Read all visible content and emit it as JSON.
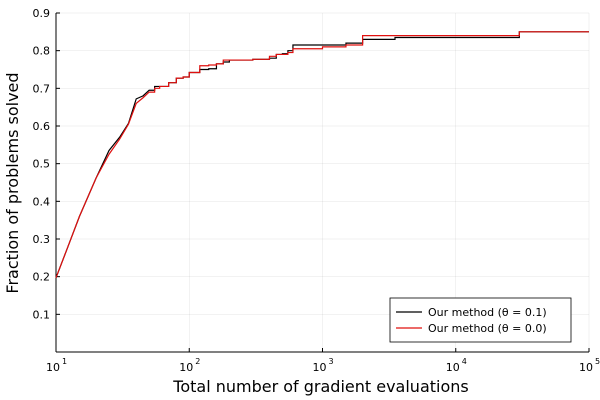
{
  "chart_data": {
    "type": "line",
    "step": true,
    "title": "",
    "xlabel": "Total number of gradient evaluations",
    "ylabel": "Fraction of problems solved",
    "xscale": "log",
    "xlim": [
      10,
      100000
    ],
    "ylim": [
      0,
      0.9
    ],
    "grid": true,
    "legend_position": "bottom-right",
    "x_ticks": [
      {
        "value": 10,
        "base": "10",
        "exp": "1"
      },
      {
        "value": 100,
        "base": "10",
        "exp": "2"
      },
      {
        "value": 1000,
        "base": "10",
        "exp": "3"
      },
      {
        "value": 10000,
        "base": "10",
        "exp": "4"
      },
      {
        "value": 100000,
        "base": "10",
        "exp": "5"
      }
    ],
    "y_ticks": [
      {
        "value": 0.1,
        "label": "0.1"
      },
      {
        "value": 0.2,
        "label": "0.2"
      },
      {
        "value": 0.3,
        "label": "0.3"
      },
      {
        "value": 0.4,
        "label": "0.4"
      },
      {
        "value": 0.5,
        "label": "0.5"
      },
      {
        "value": 0.6,
        "label": "0.6"
      },
      {
        "value": 0.7,
        "label": "0.7"
      },
      {
        "value": 0.8,
        "label": "0.8"
      },
      {
        "value": 0.9,
        "label": "0.9"
      }
    ],
    "series": [
      {
        "name": "Our method (θ = 0.1)",
        "color": "#000000",
        "points": [
          [
            10,
            0.197
          ],
          [
            12,
            0.27
          ],
          [
            15,
            0.36
          ],
          [
            20,
            0.462
          ],
          [
            25,
            0.535
          ],
          [
            30,
            0.57
          ],
          [
            35,
            0.607
          ],
          [
            40,
            0.672
          ],
          [
            45,
            0.68
          ],
          [
            50,
            0.695
          ],
          [
            55,
            0.705
          ],
          [
            60,
            0.705
          ],
          [
            70,
            0.715
          ],
          [
            80,
            0.727
          ],
          [
            90,
            0.73
          ],
          [
            100,
            0.742
          ],
          [
            120,
            0.75
          ],
          [
            140,
            0.752
          ],
          [
            160,
            0.765
          ],
          [
            180,
            0.77
          ],
          [
            200,
            0.775
          ],
          [
            300,
            0.777
          ],
          [
            400,
            0.78
          ],
          [
            450,
            0.79
          ],
          [
            500,
            0.792
          ],
          [
            550,
            0.8
          ],
          [
            600,
            0.815
          ],
          [
            700,
            0.815
          ],
          [
            1000,
            0.815
          ],
          [
            1500,
            0.82
          ],
          [
            2000,
            0.83
          ],
          [
            3500,
            0.835
          ],
          [
            5000,
            0.835
          ],
          [
            10000,
            0.835
          ],
          [
            20000,
            0.835
          ],
          [
            30000,
            0.85
          ],
          [
            50000,
            0.85
          ],
          [
            100000,
            0.85
          ]
        ]
      },
      {
        "name": "Our method (θ = 0.0)",
        "color": "#e0100f",
        "points": [
          [
            10,
            0.197
          ],
          [
            12,
            0.27
          ],
          [
            15,
            0.36
          ],
          [
            20,
            0.462
          ],
          [
            25,
            0.525
          ],
          [
            30,
            0.565
          ],
          [
            35,
            0.605
          ],
          [
            40,
            0.66
          ],
          [
            45,
            0.675
          ],
          [
            50,
            0.69
          ],
          [
            55,
            0.7
          ],
          [
            60,
            0.705
          ],
          [
            70,
            0.715
          ],
          [
            80,
            0.727
          ],
          [
            90,
            0.73
          ],
          [
            100,
            0.742
          ],
          [
            120,
            0.76
          ],
          [
            140,
            0.762
          ],
          [
            160,
            0.765
          ],
          [
            180,
            0.775
          ],
          [
            200,
            0.775
          ],
          [
            300,
            0.777
          ],
          [
            400,
            0.785
          ],
          [
            450,
            0.79
          ],
          [
            500,
            0.79
          ],
          [
            550,
            0.795
          ],
          [
            600,
            0.805
          ],
          [
            700,
            0.805
          ],
          [
            1000,
            0.81
          ],
          [
            1500,
            0.815
          ],
          [
            2000,
            0.84
          ],
          [
            3500,
            0.84
          ],
          [
            5000,
            0.84
          ],
          [
            10000,
            0.84
          ],
          [
            20000,
            0.84
          ],
          [
            30000,
            0.85
          ],
          [
            50000,
            0.85
          ],
          [
            100000,
            0.85
          ]
        ]
      }
    ]
  }
}
